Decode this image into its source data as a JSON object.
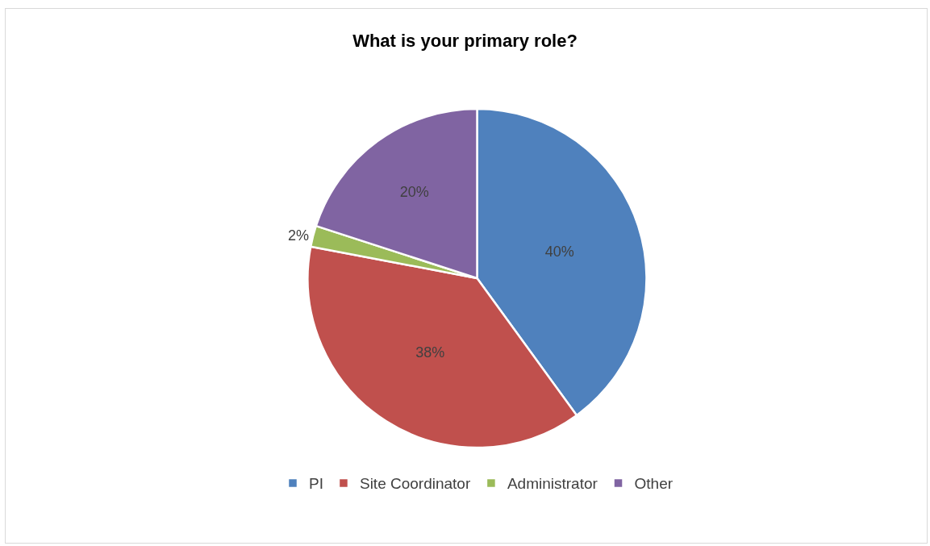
{
  "chart_data": {
    "type": "pie",
    "title": "What is your primary role?",
    "categories": [
      "PI",
      "Site Coordinator",
      "Administrator",
      "Other"
    ],
    "values": [
      40,
      38,
      2,
      20
    ],
    "colors": [
      "#4f81bd",
      "#c0504d",
      "#9bbb59",
      "#8064a2"
    ],
    "value_labels": [
      "40%",
      "38%",
      "2%",
      "20%"
    ],
    "legend": "bottom"
  }
}
